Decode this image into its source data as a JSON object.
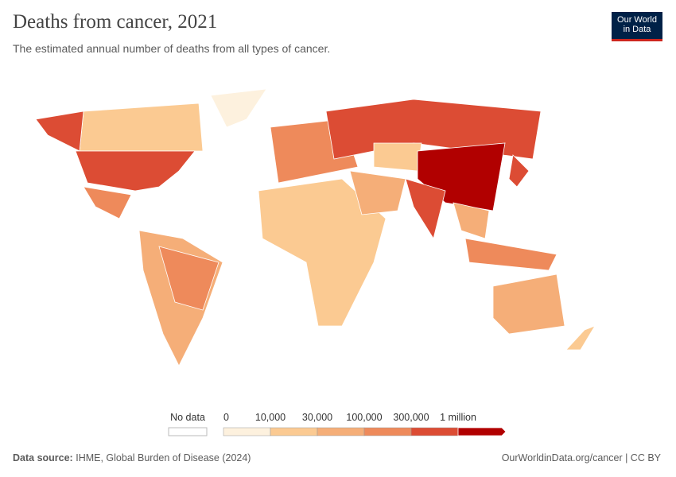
{
  "header": {
    "title": "Deaths from cancer, 2021",
    "subtitle": "The estimated annual number of deaths from all types of cancer.",
    "logo": [
      "Our World",
      "in Data"
    ]
  },
  "legend": {
    "no_data": "No data",
    "ticks": [
      "0",
      "10,000",
      "30,000",
      "100,000",
      "300,000",
      "1 million"
    ],
    "colors": [
      "#fdf1de",
      "#fbca92",
      "#f5ae78",
      "#ee8a5b",
      "#dc4c34",
      "#b10000"
    ]
  },
  "footer": {
    "source_label": "Data source:",
    "source": "IHME, Global Burden of Disease (2024)",
    "url": "OurWorldinData.org/cancer | CC BY"
  }
}
